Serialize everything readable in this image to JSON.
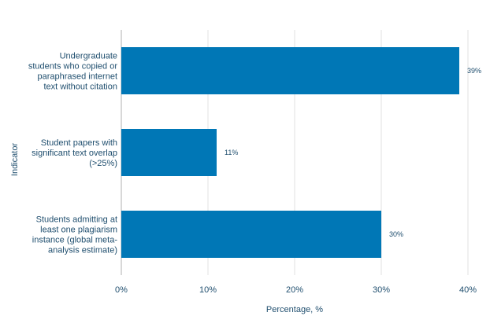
{
  "colors": {
    "bar": "#0077b6",
    "grid": "#e2e2e2",
    "axis": "#cccccc",
    "text": "#1f4e6e"
  },
  "chart_data": {
    "type": "bar",
    "orientation": "horizontal",
    "categories": [
      "Undergraduate students who copied or paraphrased internet text without citation",
      "Student papers with significant text overlap (>25%)",
      "Students admitting at least one plagiarism instance (global meta-analysis estimate)"
    ],
    "category_lines": [
      [
        "Undergraduate",
        "students who copied or",
        "paraphrased internet",
        "text without citation"
      ],
      [
        "Student papers with",
        "significant text overlap",
        "(>25%)"
      ],
      [
        "Students admitting at",
        "least one plagiarism",
        "instance (global meta-",
        "analysis estimate)"
      ]
    ],
    "values": [
      39,
      11,
      30
    ],
    "value_labels": [
      "39%",
      "11%",
      "30%"
    ],
    "xlabel": "Percentage, %",
    "ylabel": "Indicator",
    "xlim": [
      0,
      40
    ],
    "xticks": [
      0,
      10,
      20,
      30,
      40
    ],
    "xtick_labels": [
      "0%",
      "10%",
      "20%",
      "30%",
      "40%"
    ],
    "grid": true,
    "legend": "none"
  }
}
